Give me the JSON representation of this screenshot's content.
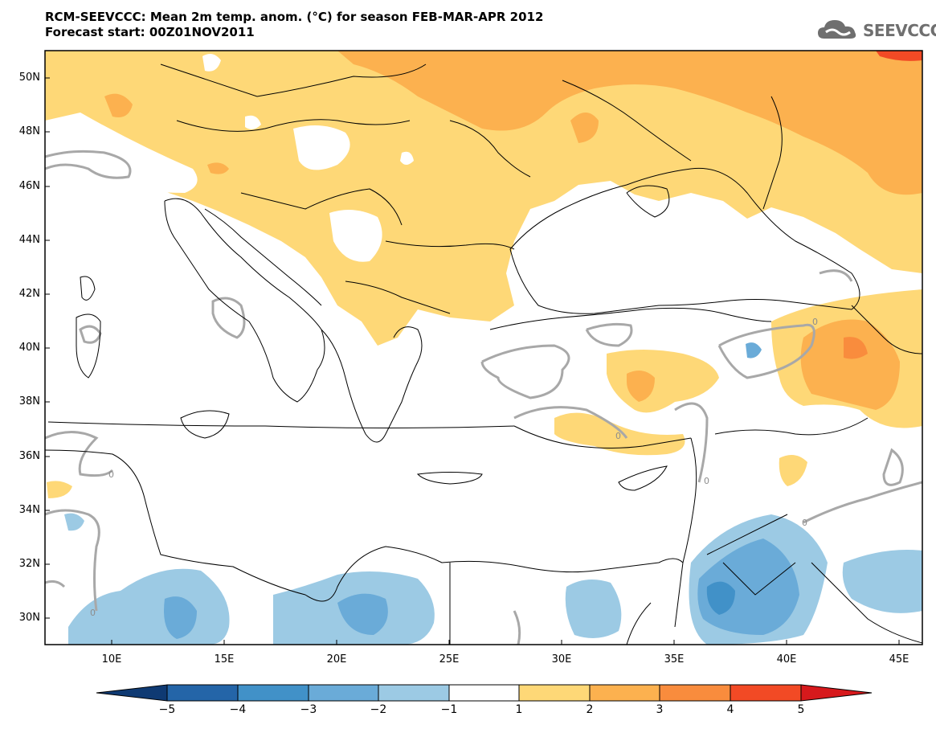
{
  "title": {
    "line1": "RCM-SEEVCCC: Mean 2m temp. anom. (°C) for season FEB-MAR-APR 2012",
    "line2": "Forecast start: 00Z01NOV2011"
  },
  "logo": {
    "text": "SEEVCCC",
    "icon": "cloud-logo-icon"
  },
  "map": {
    "lat_labels": [
      "50N",
      "48N",
      "46N",
      "44N",
      "42N",
      "40N",
      "38N",
      "36N",
      "34N",
      "32N",
      "30N"
    ],
    "lon_labels": [
      "10E",
      "15E",
      "20E",
      "25E",
      "30E",
      "35E",
      "40E",
      "45E"
    ],
    "contour_label": "0",
    "colors": {
      "land_outline": "#000000",
      "zero_contour": "#a8a8a8",
      "warm_1_2": "#fed877",
      "warm_2_3": "#fcb14f",
      "warm_3_4": "#f98c3d",
      "warm_4_5": "#f24a25",
      "cool_1_2": "#9ccae4",
      "cool_2_3": "#6aabd8",
      "cool_3_4": "#4191c8"
    }
  },
  "colorbar": {
    "labels": [
      "−5",
      "−4",
      "−3",
      "−2",
      "−1",
      "1",
      "2",
      "3",
      "4",
      "5"
    ],
    "colors": [
      "#0f3a73",
      "#2465a8",
      "#4191c8",
      "#6aabd8",
      "#9ccae4",
      "#ffffff",
      "#fed877",
      "#fcb14f",
      "#f98c3d",
      "#f24a25",
      "#d7191c"
    ]
  }
}
